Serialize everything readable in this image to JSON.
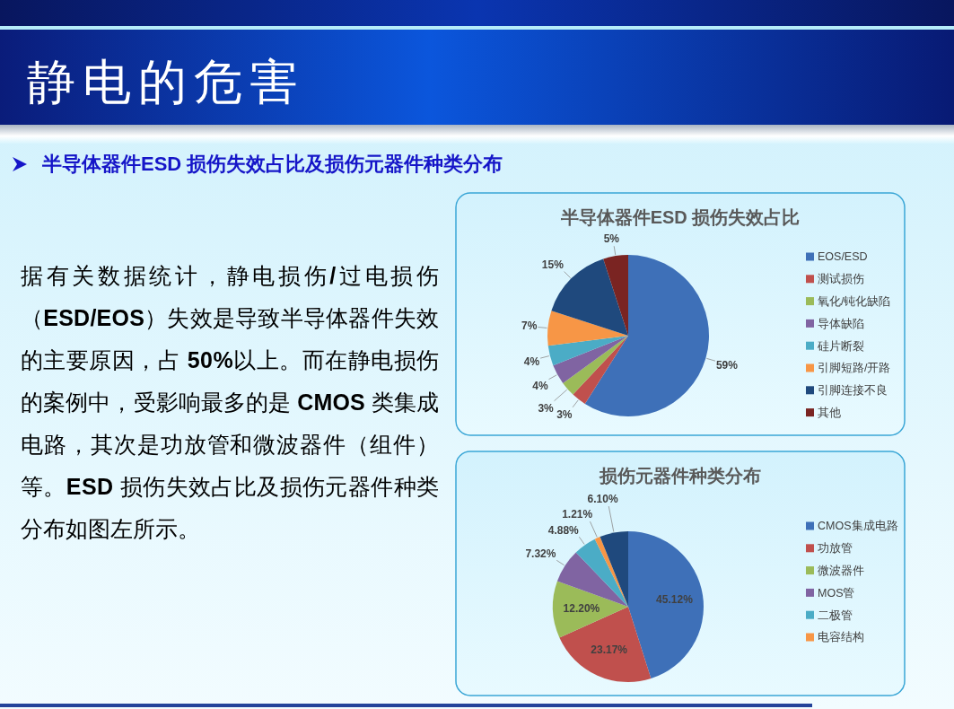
{
  "chart_data": [
    {
      "type": "other",
      "title": "静电的危害",
      "subtitle": "半导体器件ESD 损伤失效占比及损伤元器件种类分布",
      "annotations": [
        "据有关数据统计，静电损伤/过电损伤（ESD/EOS）失效是导致半导体器件失效的主要原因，占 50%以上。而在静电损伤的案例中，受影响最多的是 CMOS 类集成电路，其次是功放管和微波器件（组件）等。ESD 损伤失效占比及损伤元器件种类分布如图左所示。"
      ]
    },
    {
      "type": "pie",
      "title": "半导体器件ESD 损伤失效占比",
      "categories": [
        "EOS/ESD",
        "测试损伤",
        "氧化/钝化缺陷",
        "导体缺陷",
        "硅片断裂",
        "引脚短路/开路",
        "引脚连接不良",
        "其他"
      ],
      "values": [
        59,
        3,
        3,
        4,
        4,
        7,
        15,
        5
      ],
      "colors": [
        "#3e70b8",
        "#c0504d",
        "#9bbb59",
        "#8064a2",
        "#4bacc6",
        "#f79646",
        "#1f497d",
        "#7a2422"
      ],
      "value_labels": [
        "59%",
        "3%",
        "3%",
        "4%",
        "4%",
        "7%",
        "15%",
        "5%"
      ],
      "legend": "right"
    },
    {
      "type": "pie",
      "title": "损伤元器件种类分布",
      "categories": [
        "CMOS集成电路",
        "功放管",
        "微波器件",
        "MOS管",
        "二极管",
        "电容结构",
        null
      ],
      "values": [
        45.12,
        23.17,
        12.2,
        7.32,
        4.88,
        1.21,
        6.1
      ],
      "colors": [
        "#3e70b8",
        "#c0504d",
        "#9bbb59",
        "#8064a2",
        "#4bacc6",
        "#f79646",
        "#1f497d"
      ],
      "value_labels": [
        "45.12%",
        "23.17%",
        "12.20%",
        "7.32%",
        "4.88%",
        "1.21%",
        "6.10%"
      ],
      "legend": "right"
    }
  ]
}
